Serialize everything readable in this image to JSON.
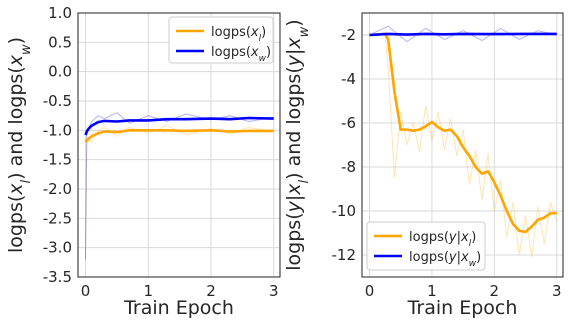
{
  "colors": {
    "orange": "#FFA500",
    "blue": "#0000FF",
    "grid": "#DADADA",
    "spine": "#222222",
    "text": "#262626"
  },
  "chart_data": [
    {
      "type": "line",
      "xlabel": "Train Epoch",
      "ylabel": "logps(x_l) and logps(x_w)",
      "xlim": [
        -0.12,
        3.1
      ],
      "ylim": [
        -3.5,
        1.0
      ],
      "xticks": [
        0,
        1,
        2,
        3
      ],
      "yticks": [
        1.0,
        0.5,
        0.0,
        -0.5,
        -1.0,
        -1.5,
        -2.0,
        -2.5,
        -3.0,
        -3.5
      ],
      "grid": true,
      "legend_position": "top-right",
      "series": [
        {
          "name": "logps(x_l)",
          "color": "#FFA500",
          "x": [
            0.0,
            0.02,
            0.05,
            0.1,
            0.2,
            0.3,
            0.5,
            0.7,
            1.0,
            1.3,
            1.6,
            2.0,
            2.3,
            2.6,
            3.0
          ],
          "smoothed": [
            -1.2,
            -1.17,
            -1.14,
            -1.1,
            -1.05,
            -1.02,
            -1.03,
            -1.0,
            -1.0,
            -1.0,
            -1.01,
            -1.0,
            -1.02,
            -1.01,
            -1.01
          ],
          "raw": [
            -3.2,
            -1.25,
            -1.15,
            -1.2,
            -1.0,
            -0.95,
            -1.1,
            -0.95,
            -1.05,
            -0.92,
            -1.08,
            -0.97,
            -1.06,
            -0.95,
            -1.02
          ]
        },
        {
          "name": "logps(x_w)",
          "color": "#0000FF",
          "x": [
            0.0,
            0.02,
            0.05,
            0.1,
            0.2,
            0.3,
            0.5,
            0.7,
            1.0,
            1.3,
            1.6,
            2.0,
            2.3,
            2.6,
            3.0
          ],
          "smoothed": [
            -1.08,
            -1.02,
            -0.97,
            -0.92,
            -0.86,
            -0.84,
            -0.85,
            -0.83,
            -0.83,
            -0.81,
            -0.81,
            -0.8,
            -0.81,
            -0.79,
            -0.8
          ],
          "raw": [
            -3.2,
            -1.0,
            -0.95,
            -0.85,
            -0.75,
            -0.8,
            -0.7,
            -0.88,
            -0.75,
            -0.85,
            -0.72,
            -0.82,
            -0.75,
            -0.85,
            -0.78
          ]
        }
      ]
    },
    {
      "type": "line",
      "xlabel": "Train Epoch",
      "ylabel": "logps(y|x_l) and logps(y|x_w)",
      "xlim": [
        -0.12,
        3.1
      ],
      "ylim": [
        -13.0,
        -1.0
      ],
      "xticks": [
        0,
        1,
        2,
        3
      ],
      "yticks": [
        -2,
        -4,
        -6,
        -8,
        -10,
        -12
      ],
      "grid": true,
      "legend_position": "bottom-left",
      "series": [
        {
          "name": "logps(y|x_l)",
          "color": "#FFA500",
          "x": [
            0.0,
            0.25,
            0.3,
            0.4,
            0.5,
            0.6,
            0.7,
            0.8,
            0.9,
            1.0,
            1.1,
            1.2,
            1.3,
            1.4,
            1.5,
            1.6,
            1.7,
            1.8,
            1.9,
            2.0,
            2.1,
            2.2,
            2.3,
            2.4,
            2.5,
            2.6,
            2.7,
            2.8,
            2.9,
            3.0
          ],
          "smoothed": [
            -2.0,
            -1.95,
            -2.2,
            -4.6,
            -6.3,
            -6.3,
            -6.35,
            -6.3,
            -6.15,
            -5.95,
            -6.2,
            -6.35,
            -6.3,
            -6.6,
            -7.1,
            -7.5,
            -8.0,
            -8.3,
            -8.2,
            -8.7,
            -9.3,
            -10.0,
            -10.6,
            -10.9,
            -10.95,
            -10.7,
            -10.4,
            -10.3,
            -10.1,
            -10.1
          ],
          "raw": [
            -2.0,
            -2.0,
            -3.5,
            -8.5,
            -5.5,
            -7.0,
            -6.0,
            -7.3,
            -5.2,
            -6.8,
            -5.5,
            -7.2,
            -5.8,
            -7.5,
            -6.3,
            -8.8,
            -7.2,
            -9.5,
            -7.4,
            -10.0,
            -8.6,
            -11.2,
            -9.6,
            -12.0,
            -10.2,
            -12.1,
            -9.8,
            -11.5,
            -9.6,
            -10.5
          ]
        },
        {
          "name": "logps(y|x_w)",
          "color": "#0000FF",
          "x": [
            0.0,
            0.3,
            0.6,
            0.9,
            1.2,
            1.5,
            1.8,
            2.1,
            2.4,
            2.7,
            3.0
          ],
          "smoothed": [
            -2.0,
            -1.95,
            -1.98,
            -1.95,
            -1.97,
            -1.95,
            -1.96,
            -1.96,
            -1.95,
            -1.95,
            -1.95
          ],
          "raw": [
            -2.0,
            -1.6,
            -2.3,
            -1.7,
            -2.2,
            -1.8,
            -2.25,
            -1.7,
            -2.2,
            -1.8,
            -2.0
          ]
        }
      ]
    }
  ]
}
